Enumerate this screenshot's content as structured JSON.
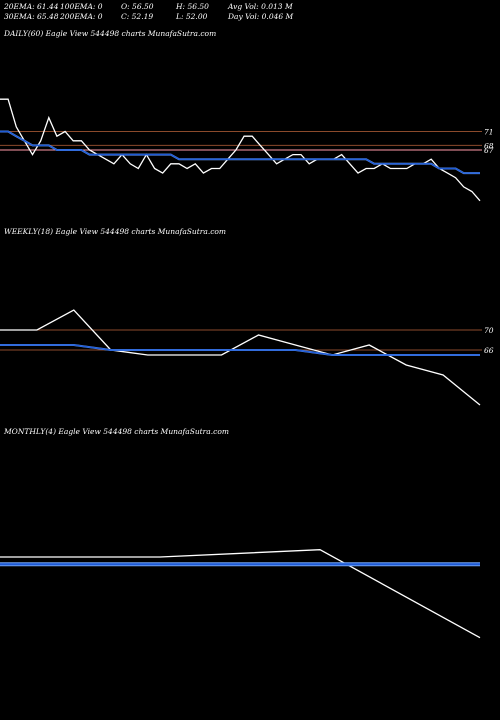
{
  "header": {
    "ema20": "20EMA: 61.44",
    "ema100": "100EMA: 0",
    "open": "O: 56.50",
    "high": "H: 56.50",
    "avg_vol": "Avg Vol: 0.013 M",
    "ema30": "30EMA: 65.48",
    "ema200": "200EMA: 0",
    "close": "C: 52.19",
    "low": "L: 52.00",
    "day_vol": "Day Vol: 0.046  M"
  },
  "colors": {
    "background": "#000000",
    "price": "#ffffff",
    "ema": "#1f5bd6",
    "ema_light": "#6fa0f0",
    "level_brown": "#8b4a2b",
    "level_pink": "#ff9aa8"
  },
  "chart_data": [
    {
      "type": "line",
      "title": "DAILY(60) Eagle   View  544498  charts MunafaSutra.com",
      "level_labels": [
        "71",
        "67",
        "68"
      ],
      "levels": [
        71,
        67,
        68
      ],
      "series": [
        {
          "role": "price",
          "values": [
            78,
            78,
            72,
            69,
            66,
            69,
            74,
            70,
            71,
            69,
            69,
            67,
            66,
            65,
            64,
            66,
            64,
            63,
            66,
            63,
            62,
            64,
            64,
            63,
            64,
            62,
            63,
            63,
            65,
            67,
            70,
            70,
            68,
            66,
            64,
            65,
            66,
            66,
            64,
            65,
            65,
            65,
            66,
            64,
            62,
            63,
            63,
            64,
            63,
            63,
            63,
            64,
            64,
            65,
            63,
            62,
            61,
            59,
            58,
            56
          ]
        },
        {
          "role": "ema",
          "values": [
            71,
            71,
            70,
            69,
            68,
            68,
            68,
            67,
            67,
            67,
            67,
            66,
            66,
            66,
            66,
            66,
            66,
            66,
            66,
            66,
            66,
            66,
            65,
            65,
            65,
            65,
            65,
            65,
            65,
            65,
            65,
            65,
            65,
            65,
            65,
            65,
            65,
            65,
            65,
            65,
            65,
            65,
            65,
            65,
            65,
            65,
            64,
            64,
            64,
            64,
            64,
            64,
            64,
            64,
            63,
            63,
            63,
            62,
            62,
            62
          ]
        }
      ]
    },
    {
      "type": "line",
      "title": "WEEKLY(18) Eagle   View  544498  charts MunafaSutra.com",
      "level_labels": [
        "70",
        "66"
      ],
      "levels": [
        70,
        66
      ],
      "series": [
        {
          "role": "price",
          "values": [
            70,
            70,
            74,
            66,
            65,
            65,
            65,
            69,
            67,
            65,
            67,
            63,
            61,
            55
          ]
        },
        {
          "role": "ema",
          "values": [
            67,
            67,
            67,
            66,
            66,
            66,
            66,
            66,
            66,
            65,
            65,
            65,
            65,
            65
          ]
        }
      ]
    },
    {
      "type": "line",
      "title": "MONTHLY(4) Eagle   View  544498  charts MunafaSutra.com",
      "series": [
        {
          "role": "price",
          "values": [
            66,
            66,
            67,
            55
          ]
        },
        {
          "role": "ema",
          "values": [
            65,
            65,
            65,
            65
          ]
        }
      ]
    }
  ]
}
